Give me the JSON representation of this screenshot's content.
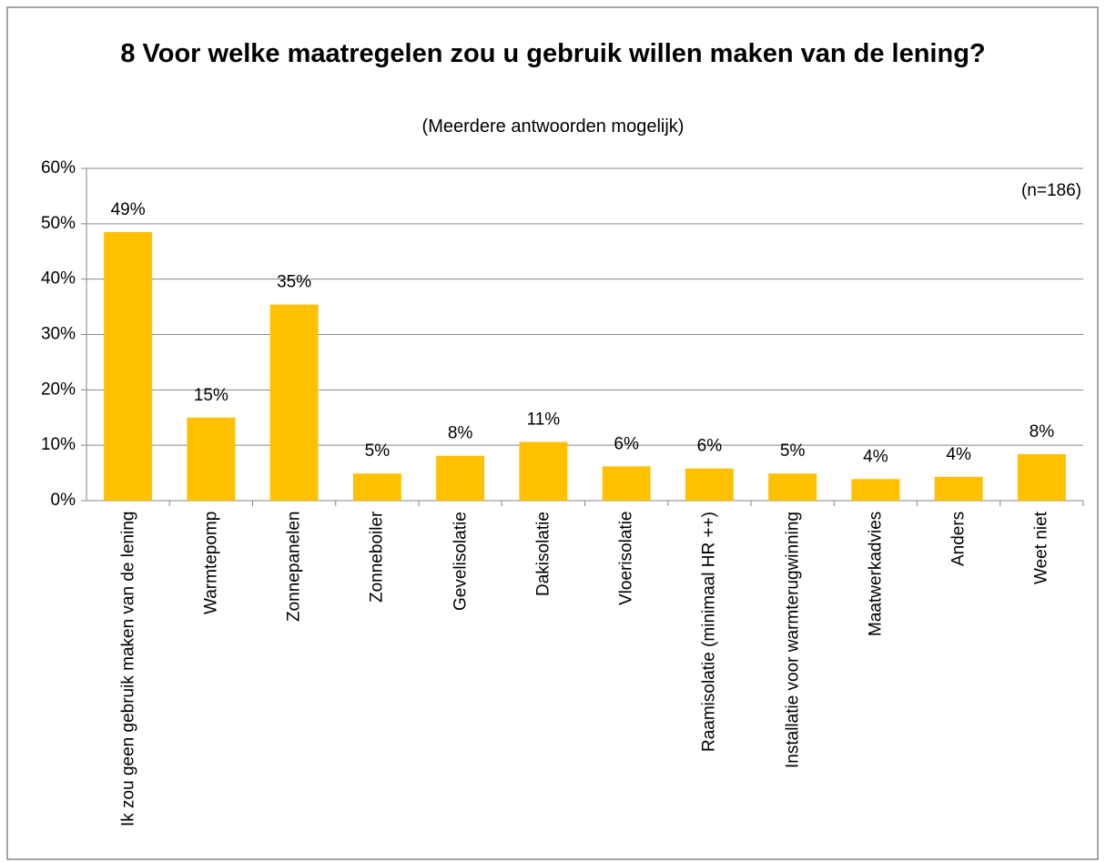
{
  "chart_data": {
    "type": "bar",
    "title": "8 Voor welke maatregelen zou u gebruik willen maken van de lening?",
    "subtitle": "(Meerdere antwoorden mogelijk)",
    "annotation": "(n=186)",
    "categories": [
      "Ik zou geen gebruik maken van de lening",
      "Warmtepomp",
      "Zonnepanelen",
      "Zonneboiler",
      "Gevelisolatie",
      "Dakisolatie",
      "Vloerisolatie",
      "Raamisolatie (minimaal HR ++)",
      "Installatie voor warmterugwinning",
      "Maatwerkadvies",
      "Anders",
      "Weet niet"
    ],
    "values": [
      48.5,
      15.0,
      35.4,
      4.9,
      8.1,
      10.6,
      6.2,
      5.8,
      4.9,
      3.9,
      4.3,
      8.4
    ],
    "value_labels": [
      "49%",
      "15%",
      "35%",
      "5%",
      "8%",
      "11%",
      "6%",
      "6%",
      "5%",
      "4%",
      "4%",
      "8%"
    ],
    "color": "#ffc000",
    "ylim": [
      0,
      60
    ],
    "yticks": [
      {
        "value": 0,
        "label": "0%"
      },
      {
        "value": 10,
        "label": "10%"
      },
      {
        "value": 20,
        "label": "20%"
      },
      {
        "value": 30,
        "label": "30%"
      },
      {
        "value": 40,
        "label": "40%"
      },
      {
        "value": 50,
        "label": "50%"
      },
      {
        "value": 60,
        "label": "60%"
      }
    ],
    "grid": true
  }
}
